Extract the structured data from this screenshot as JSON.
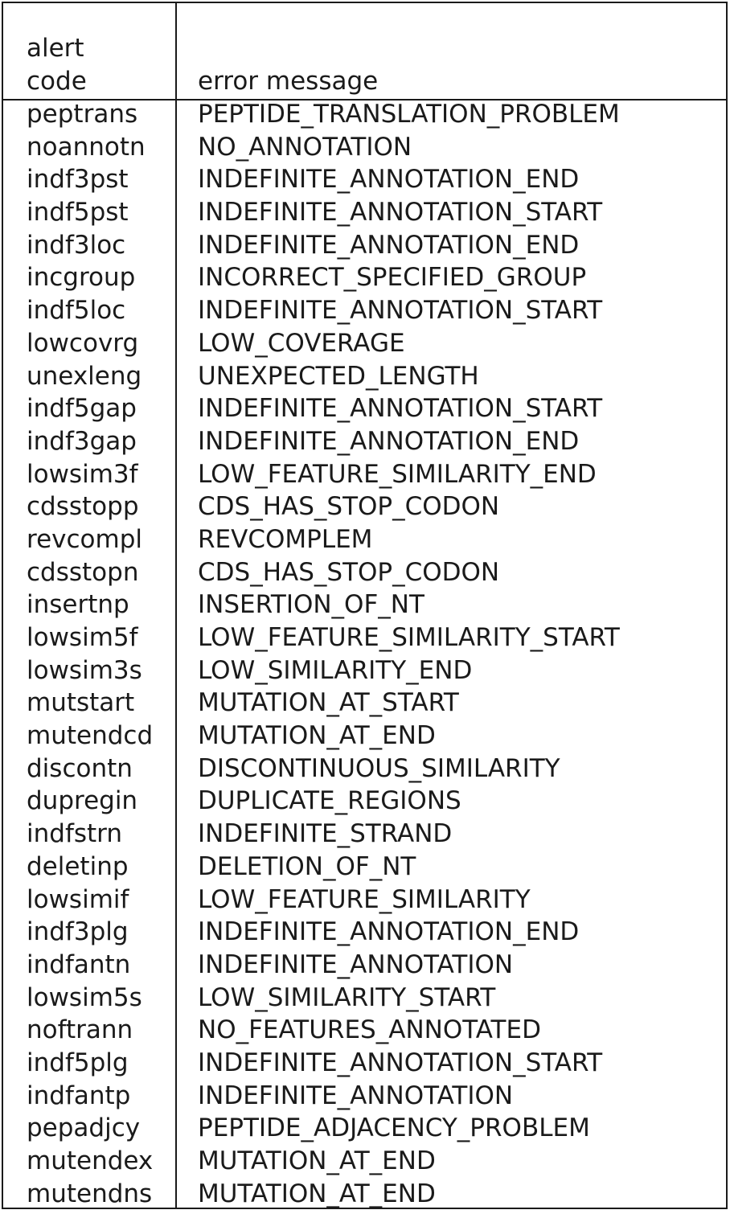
{
  "table": {
    "header": {
      "code_line1": "alert",
      "code_line2": "code",
      "message": "error message"
    },
    "rows": [
      {
        "code": "peptrans",
        "message": "PEPTIDE_TRANSLATION_PROBLEM"
      },
      {
        "code": "noannotn",
        "message": "NO_ANNOTATION"
      },
      {
        "code": "indf3pst",
        "message": "INDEFINITE_ANNOTATION_END"
      },
      {
        "code": "indf5pst",
        "message": "INDEFINITE_ANNOTATION_START"
      },
      {
        "code": "indf3loc",
        "message": "INDEFINITE_ANNOTATION_END"
      },
      {
        "code": "incgroup",
        "message": "INCORRECT_SPECIFIED_GROUP"
      },
      {
        "code": "indf5loc",
        "message": "INDEFINITE_ANNOTATION_START"
      },
      {
        "code": "lowcovrg",
        "message": "LOW_COVERAGE"
      },
      {
        "code": "unexleng",
        "message": "UNEXPECTED_LENGTH"
      },
      {
        "code": "indf5gap",
        "message": "INDEFINITE_ANNOTATION_START"
      },
      {
        "code": "indf3gap",
        "message": "INDEFINITE_ANNOTATION_END"
      },
      {
        "code": "lowsim3f",
        "message": "LOW_FEATURE_SIMILARITY_END"
      },
      {
        "code": "cdsstopp",
        "message": "CDS_HAS_STOP_CODON"
      },
      {
        "code": "revcompl",
        "message": "REVCOMPLEM"
      },
      {
        "code": "cdsstopn",
        "message": "CDS_HAS_STOP_CODON"
      },
      {
        "code": "insertnp",
        "message": "INSERTION_OF_NT"
      },
      {
        "code": "lowsim5f",
        "message": "LOW_FEATURE_SIMILARITY_START"
      },
      {
        "code": "lowsim3s",
        "message": "LOW_SIMILARITY_END"
      },
      {
        "code": "mutstart",
        "message": "MUTATION_AT_START"
      },
      {
        "code": "mutendcd",
        "message": "MUTATION_AT_END"
      },
      {
        "code": "discontn",
        "message": "DISCONTINUOUS_SIMILARITY"
      },
      {
        "code": "dupregin",
        "message": "DUPLICATE_REGIONS"
      },
      {
        "code": "indfstrn",
        "message": "INDEFINITE_STRAND"
      },
      {
        "code": "deletinp",
        "message": "DELETION_OF_NT"
      },
      {
        "code": "lowsimif",
        "message": "LOW_FEATURE_SIMILARITY"
      },
      {
        "code": "indf3plg",
        "message": "INDEFINITE_ANNOTATION_END"
      },
      {
        "code": "indfantn",
        "message": "INDEFINITE_ANNOTATION"
      },
      {
        "code": "lowsim5s",
        "message": "LOW_SIMILARITY_START"
      },
      {
        "code": "noftrann",
        "message": "NO_FEATURES_ANNOTATED"
      },
      {
        "code": "indf5plg",
        "message": "INDEFINITE_ANNOTATION_START"
      },
      {
        "code": "indfantp",
        "message": "INDEFINITE_ANNOTATION"
      },
      {
        "code": "pepadjcy",
        "message": "PEPTIDE_ADJACENCY_PROBLEM"
      },
      {
        "code": "mutendex",
        "message": "MUTATION_AT_END"
      },
      {
        "code": "mutendns",
        "message": "MUTATION_AT_END"
      }
    ]
  }
}
